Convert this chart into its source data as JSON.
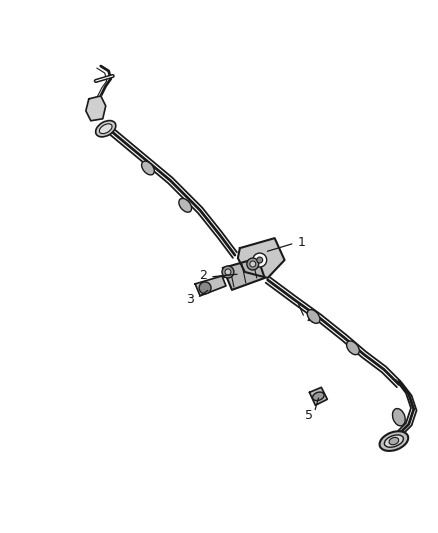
{
  "background_color": "#ffffff",
  "line_color": "#1a1a1a",
  "label_color": "#1a1a1a",
  "figsize": [
    4.38,
    5.33
  ],
  "dpi": 100,
  "lw_main": 2.0,
  "lw_mid": 1.3,
  "lw_thin": 0.8
}
